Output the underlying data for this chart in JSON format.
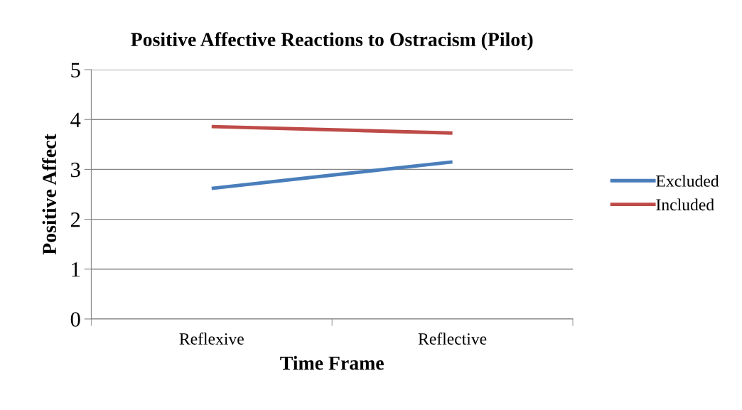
{
  "chart_data": {
    "type": "line",
    "title": "Positive Affective Reactions to Ostracism (Pilot)",
    "xlabel": "Time Frame",
    "ylabel": "Positive Affect",
    "categories": [
      "Reflexive",
      "Reflective"
    ],
    "series": [
      {
        "name": "Excluded",
        "color": "#4a7ebb",
        "values": [
          2.62,
          3.15
        ]
      },
      {
        "name": "Included",
        "color": "#be4b48",
        "values": [
          3.86,
          3.73
        ]
      }
    ],
    "ylim": [
      0,
      5
    ],
    "yticks": [
      0,
      1,
      2,
      3,
      4,
      5
    ],
    "grid": "y",
    "legend": "right",
    "marker": "none",
    "line_style": "solid"
  }
}
